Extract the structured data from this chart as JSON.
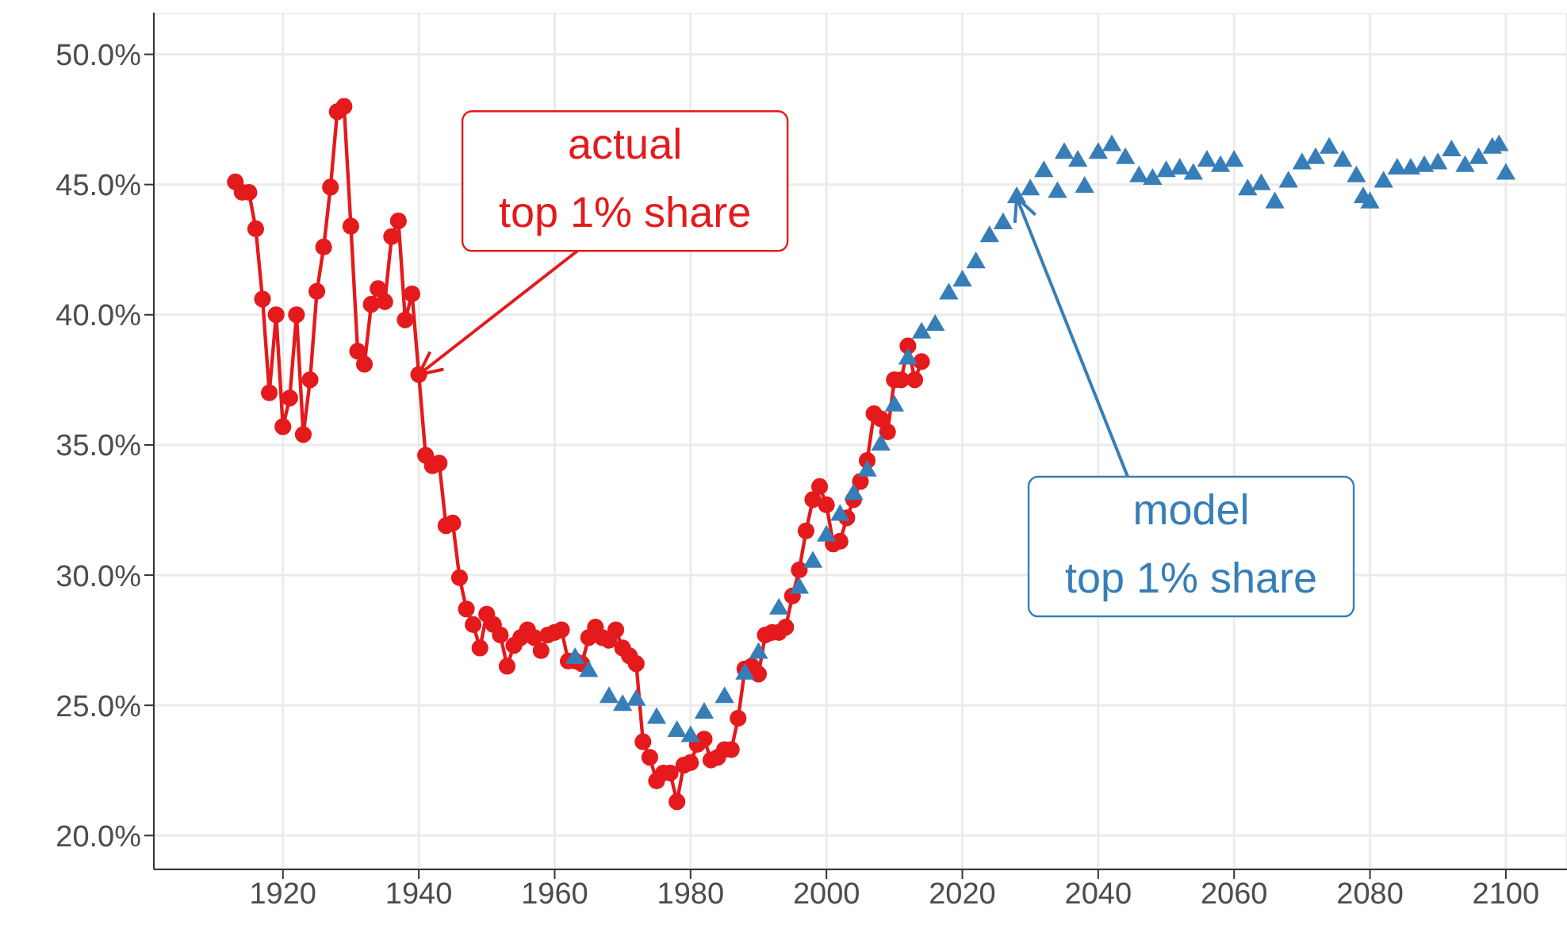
{
  "chart_data": {
    "type": "line",
    "xlim": [
      1901,
      2109
    ],
    "xticks": [
      1920,
      1940,
      1960,
      1980,
      2000,
      2020,
      2040,
      2060,
      2080,
      2100
    ],
    "ylim": [
      18.7,
      51.6
    ],
    "yticks": [
      {
        "value": 20,
        "label": "20.0%"
      },
      {
        "value": 25,
        "label": "25.0%"
      },
      {
        "value": 30,
        "label": "30.0%"
      },
      {
        "value": 35,
        "label": "35.0%"
      },
      {
        "value": 40,
        "label": "40.0%"
      },
      {
        "value": 45,
        "label": "45.0%"
      },
      {
        "value": 50,
        "label": "50.0%"
      }
    ],
    "grid": true,
    "legend": false,
    "series": [
      {
        "marker": "circle",
        "line_style": "solid",
        "color": "#e41a1c",
        "x": [
          1913,
          1914,
          1915,
          1916,
          1917,
          1918,
          1919,
          1920,
          1921,
          1922,
          1923,
          1924,
          1925,
          1926,
          1927,
          1928,
          1929,
          1930,
          1931,
          1932,
          1933,
          1934,
          1935,
          1936,
          1937,
          1938,
          1939,
          1940,
          1941,
          1942,
          1943,
          1944,
          1945,
          1946,
          1947,
          1948,
          1949,
          1950,
          1951,
          1952,
          1953,
          1954,
          1955,
          1956,
          1957,
          1958,
          1959,
          1960,
          1961,
          1962,
          1963,
          1964,
          1965,
          1966,
          1967,
          1968,
          1969,
          1970,
          1971,
          1972,
          1973,
          1974,
          1975,
          1976,
          1977,
          1978,
          1979,
          1980,
          1981,
          1982,
          1983,
          1984,
          1985,
          1986,
          1987,
          1988,
          1989,
          1990,
          1991,
          1992,
          1993,
          1994,
          1995,
          1996,
          1997,
          1998,
          1999,
          2000,
          2001,
          2002,
          2003,
          2004,
          2005,
          2006,
          2007,
          2008,
          2009,
          2010,
          2011,
          2012,
          2013,
          2014
        ],
        "values": [
          45.1,
          44.7,
          44.7,
          43.3,
          40.6,
          37.0,
          40.0,
          35.7,
          36.8,
          40.0,
          35.4,
          37.5,
          40.9,
          42.6,
          44.9,
          47.8,
          48.0,
          43.4,
          38.6,
          38.1,
          40.4,
          41.0,
          40.5,
          43.0,
          43.6,
          39.8,
          40.8,
          37.7,
          34.6,
          34.2,
          34.3,
          31.9,
          32.0,
          29.9,
          28.7,
          28.1,
          27.2,
          28.5,
          28.1,
          27.7,
          26.5,
          27.3,
          27.6,
          27.9,
          27.6,
          27.1,
          27.7,
          27.8,
          27.9,
          26.7,
          26.7,
          26.6,
          27.6,
          28.0,
          27.6,
          27.5,
          27.9,
          27.2,
          26.9,
          26.6,
          23.6,
          23.0,
          22.1,
          22.4,
          22.4,
          21.3,
          22.7,
          22.8,
          23.5,
          23.7,
          22.9,
          23.0,
          23.3,
          23.3,
          24.5,
          26.4,
          26.5,
          26.2,
          27.7,
          27.8,
          27.8,
          28.0,
          29.2,
          30.2,
          31.7,
          32.9,
          33.4,
          32.7,
          31.2,
          31.3,
          32.2,
          32.9,
          33.6,
          34.4,
          36.2,
          36.0,
          35.5,
          37.5,
          37.5,
          38.8,
          37.5,
          38.2
        ]
      },
      {
        "type": "scatter",
        "marker": "triangle",
        "color": "#377eb8",
        "x": [
          1963,
          1965,
          1968,
          1970,
          1972,
          1975,
          1978,
          1980,
          1982,
          1985,
          1988,
          1990,
          1993,
          1996,
          1998,
          2000,
          2002,
          2004,
          2006,
          2008,
          2010,
          2012,
          2014,
          2016,
          2018,
          2020,
          2022,
          2024,
          2026,
          2028,
          2030,
          2032,
          2034,
          2035,
          2037,
          2038,
          2040,
          2042,
          2044,
          2046,
          2048,
          2050,
          2052,
          2054,
          2056,
          2058,
          2060,
          2062,
          2064,
          2066,
          2068,
          2070,
          2072,
          2074,
          2076,
          2078,
          2079,
          2080,
          2082,
          2084,
          2086,
          2088,
          2090,
          2092,
          2094,
          2096,
          2098,
          2099,
          2100
        ],
        "values": [
          26.8,
          26.3,
          25.3,
          25.0,
          25.2,
          24.5,
          24.0,
          23.8,
          24.7,
          25.3,
          26.2,
          27.0,
          28.7,
          29.5,
          30.5,
          31.5,
          32.3,
          33.1,
          34.0,
          35.0,
          36.5,
          38.3,
          39.3,
          39.6,
          40.8,
          41.3,
          42.0,
          43.0,
          43.5,
          44.5,
          44.8,
          45.5,
          44.7,
          46.2,
          45.9,
          44.9,
          46.2,
          46.5,
          46.0,
          45.3,
          45.2,
          45.5,
          45.6,
          45.4,
          45.9,
          45.7,
          45.9,
          44.8,
          45.0,
          44.3,
          45.1,
          45.8,
          46.0,
          46.4,
          45.9,
          45.3,
          44.5,
          44.3,
          45.1,
          45.6,
          45.6,
          45.7,
          45.8,
          46.3,
          45.7,
          46.0,
          46.4,
          46.5,
          45.4
        ]
      }
    ],
    "annotations": [
      {
        "text": "actual\ntop 1% share",
        "x": 1940,
        "y": 37.7
      },
      {
        "text": "model\ntop 1% share",
        "x": 2028,
        "y": 44.5
      }
    ]
  }
}
